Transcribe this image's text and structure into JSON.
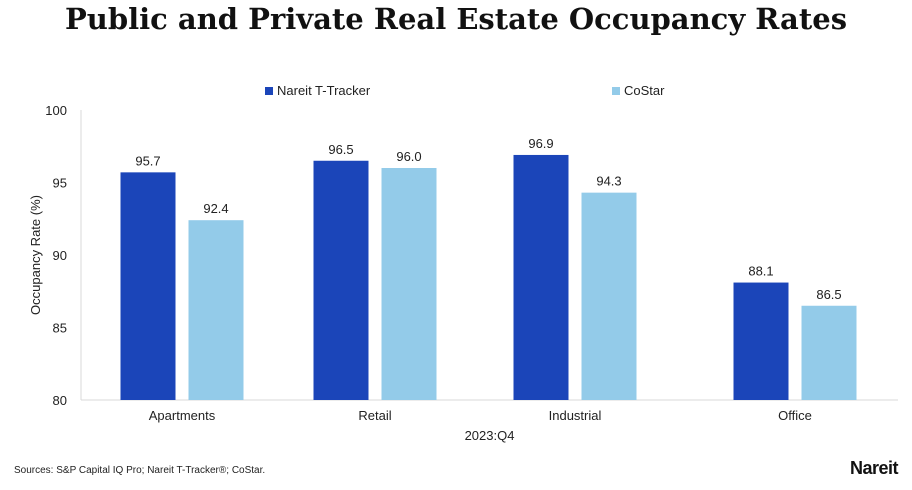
{
  "chart_data": {
    "type": "bar",
    "title": "Public and Private Real Estate Occupancy Rates",
    "xlabel": "2023:Q4",
    "ylabel": "Occupancy Rate (%)",
    "ylim": [
      80,
      100
    ],
    "yticks": [
      80,
      85,
      90,
      95,
      100
    ],
    "grid": false,
    "legend_position": "top-center",
    "categories": [
      "Apartments",
      "Retail",
      "Industrial",
      "Office"
    ],
    "series": [
      {
        "name": "Nareit T-Tracker",
        "color": "#1b45b9",
        "values": [
          95.7,
          96.5,
          96.9,
          88.1
        ]
      },
      {
        "name": "CoStar",
        "color": "#93cbe9",
        "values": [
          92.4,
          96.0,
          94.3,
          86.5
        ]
      }
    ]
  },
  "footer": {
    "source": "Sources: S&P Capital IQ Pro; Nareit T-Tracker®; CoStar.",
    "logo": "Nareit"
  }
}
